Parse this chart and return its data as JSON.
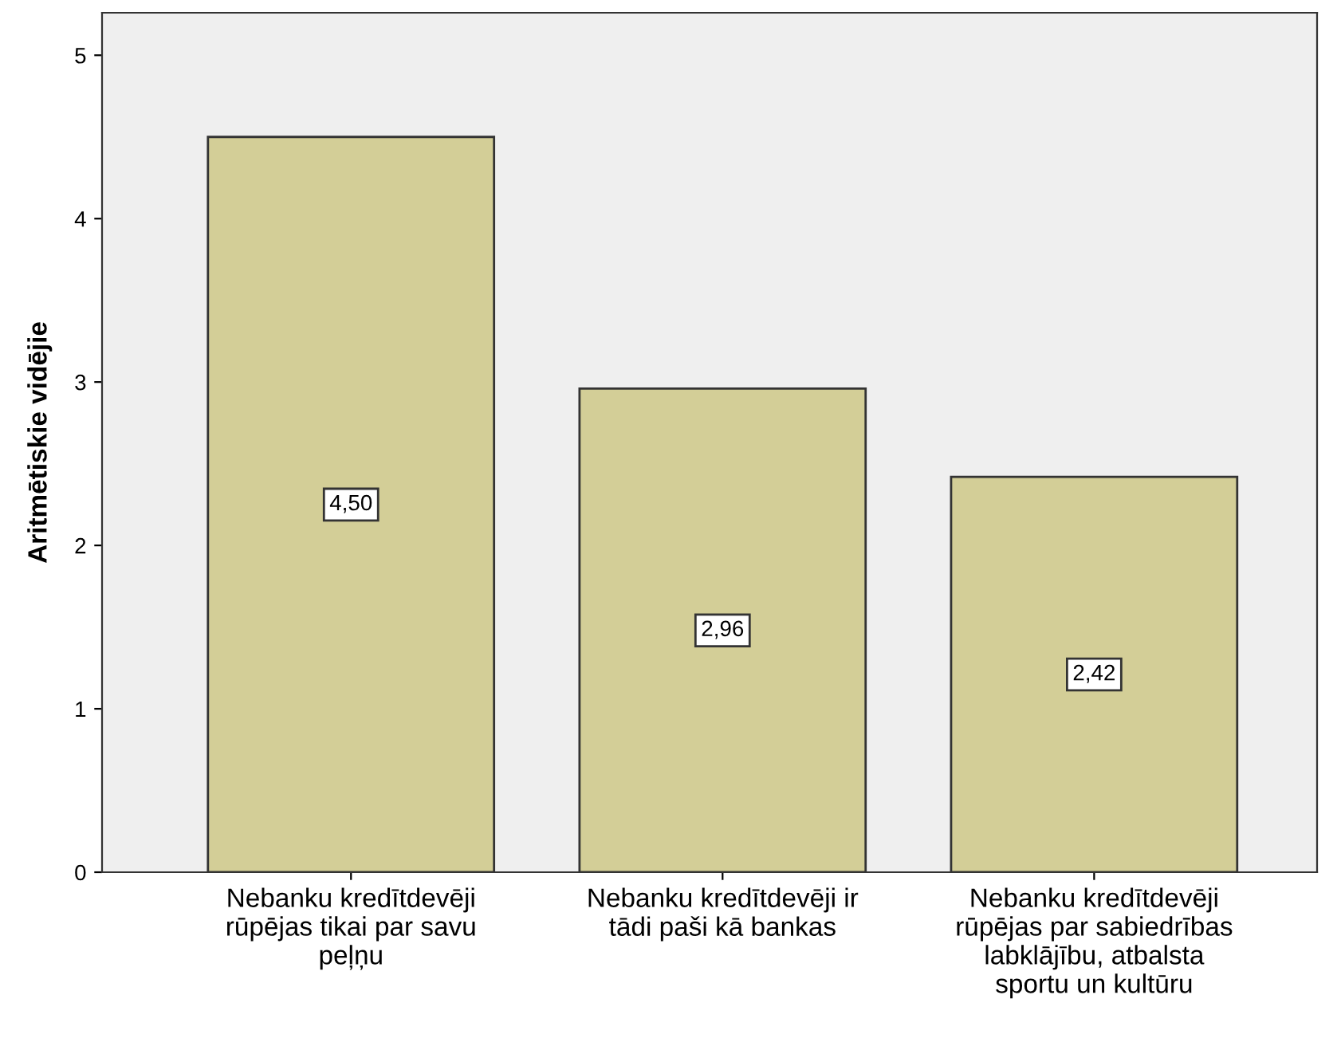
{
  "chart_data": {
    "type": "bar",
    "ylabel": "Aritmētiskie vidējie",
    "categories": [
      "Nebanku kredītdevēji\nrūpējas tikai par savu\npeļņu",
      "Nebanku kredītdevēji ir\ntādi paši kā bankas",
      "Nebanku kredītdevēji\nrūpējas par sabiedrības\nlabklājību, atbalsta\nsportu un kultūru"
    ],
    "values": [
      4.5,
      2.96,
      2.42
    ],
    "value_labels": [
      "4,50",
      "2,96",
      "2,42"
    ],
    "color": "#d3ce97",
    "ylim": [
      0,
      5.26
    ],
    "yticks": [
      0,
      1,
      2,
      3,
      4,
      5
    ],
    "grid": false,
    "legend": false
  }
}
